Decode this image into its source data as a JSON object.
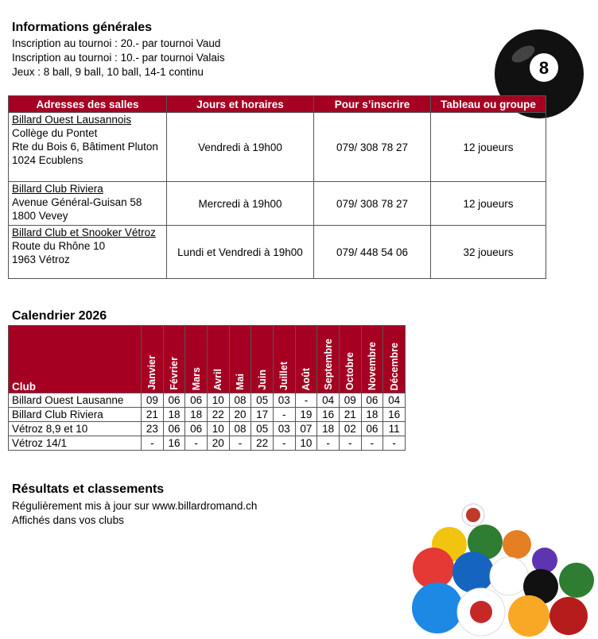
{
  "info": {
    "title": "Informations générales",
    "lines": [
      "Inscription au tournoi : 20.- par tournoi Vaud",
      "Inscription au tournoi : 10.- par tournoi Valais",
      "Jeux : 8 ball, 9 ball, 10 ball, 14-1 continu"
    ]
  },
  "halls": {
    "headers": [
      "Adresses des salles",
      "Jours et horaires",
      "Pour s’inscrire",
      "Tableau ou groupe"
    ],
    "rows": [
      {
        "name": "Billard Ouest Lausannois",
        "address": [
          "Collège du Pontet",
          "Rte du Bois 6, Bâtiment Pluton",
          "1024 Ecublens"
        ],
        "schedule": "Vendredi à 19h00",
        "phone": "079/ 308 78 27",
        "group": "12 joueurs"
      },
      {
        "name": "Billard Club Riviera",
        "address": [
          "Avenue Général-Guisan 58",
          "1800 Vevey"
        ],
        "schedule": "Mercredi à 19h00",
        "phone": "079/ 308 78 27",
        "group": "12 joueurs"
      },
      {
        "name": "Billard Club et Snooker Vétroz",
        "address": [
          "Route du Rhône 10",
          "1963 Vétroz"
        ],
        "schedule": "Lundi et Vendredi à 19h00",
        "phone": "079/ 448 54 06",
        "group": "32 joueurs"
      }
    ]
  },
  "calendar": {
    "title": "Calendrier 2026",
    "club_header": "Club",
    "months": [
      "Janvier",
      "Février",
      "Mars",
      "Avril",
      "Mai",
      "Juin",
      "Juillet",
      "Août",
      "Septembre",
      "Octobre",
      "Novembre",
      "Décembre"
    ],
    "rows": [
      {
        "club": "Billard Ouest Lausanne",
        "values": [
          "09",
          "06",
          "06",
          "10",
          "08",
          "05",
          "03",
          "-",
          "04",
          "09",
          "06",
          "04"
        ]
      },
      {
        "club": "Billard Club Riviera",
        "values": [
          "21",
          "18",
          "18",
          "22",
          "20",
          "17",
          "-",
          "19",
          "16",
          "21",
          "18",
          "16"
        ]
      },
      {
        "club": "Vétroz 8,9 et 10",
        "values": [
          "23",
          "06",
          "06",
          "10",
          "08",
          "05",
          "03",
          "07",
          "18",
          "02",
          "06",
          "11"
        ]
      },
      {
        "club": "Vétroz 14/1",
        "values": [
          "-",
          "16",
          "-",
          "20",
          "-",
          "22",
          "-",
          "10",
          "-",
          "-",
          "-",
          "-"
        ]
      }
    ]
  },
  "results": {
    "title": "Résultats et classements",
    "lines": [
      "Régulièrement mis à jour sur www.billardromand.ch",
      "Affichés dans vos clubs"
    ]
  },
  "images": {
    "top": "eight-ball",
    "bottom": "billiard-balls"
  },
  "colors": {
    "header": "#a50021"
  }
}
